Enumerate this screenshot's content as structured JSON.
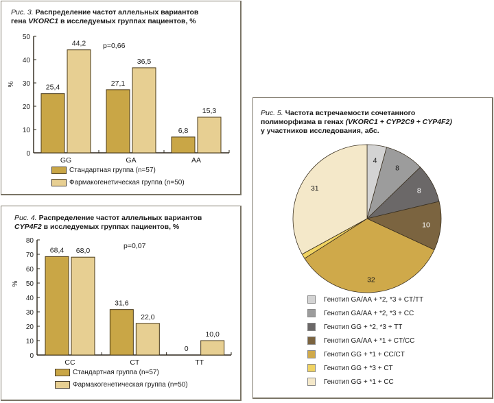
{
  "colors": {
    "standard": "#c9a646",
    "pharmaco": "#e7cf92",
    "border": "#7a7466",
    "pie": [
      "#d3d3d3",
      "#9c9c9c",
      "#6b6868",
      "#7b6440",
      "#cfa94a",
      "#f0d362",
      "#f4e8c9"
    ]
  },
  "legend_bar": {
    "standard": "Стандартная группа (n=57)",
    "pharmaco": "Фармакогенетическая группа (n=50)"
  },
  "chart_data": [
    {
      "type": "bar",
      "title_fig": "Рис. 3.",
      "title_line1": "Распределение частот аллельных вариантов",
      "title_line2_pre": "гена ",
      "title_line2_gene": "VKORC1",
      "title_line2_post": " в исследуемых группах пациентов, %",
      "ylabel": "%",
      "ylim": [
        0,
        50
      ],
      "yticks": [
        "0",
        "10",
        "20",
        "30",
        "40",
        "50"
      ],
      "ytick_values": [
        0,
        10,
        20,
        30,
        40,
        50
      ],
      "categories": [
        "GG",
        "GA",
        "AA"
      ],
      "annotation": "p=0,66",
      "series": [
        {
          "name": "Стандартная группа (n=57)",
          "values": [
            25.4,
            27.1,
            6.8
          ],
          "labels": [
            "25,4",
            "27,1",
            "6,8"
          ]
        },
        {
          "name": "Фармакогенетическая группа (n=50)",
          "values": [
            44.2,
            36.5,
            15.3
          ],
          "labels": [
            "44,2",
            "36,5",
            "15,3"
          ]
        }
      ]
    },
    {
      "type": "bar",
      "title_fig": "Рис. 4.",
      "title_line1": "Распределение частот аллельных вариантов",
      "title_line2_pre": "",
      "title_line2_gene": "CYP4F2",
      "title_line2_post": " в исследуемых группах пациентов, %",
      "ylabel": "%",
      "ylim": [
        0,
        80
      ],
      "yticks": [
        "0",
        "10",
        "20",
        "30",
        "40",
        "50",
        "60",
        "70",
        "80"
      ],
      "ytick_values": [
        0,
        10,
        20,
        30,
        40,
        50,
        60,
        70,
        80
      ],
      "categories": [
        "CC",
        "CT",
        "TT"
      ],
      "annotation": "p=0,07",
      "series": [
        {
          "name": "Стандартная группа (n=57)",
          "values": [
            68.4,
            31.6,
            0
          ],
          "labels": [
            "68,4",
            "31,6",
            "0"
          ]
        },
        {
          "name": "Фармакогенетическая группа (n=50)",
          "values": [
            68.0,
            22.0,
            10.0
          ],
          "labels": [
            "68,0",
            "22,0",
            "10,0"
          ]
        }
      ]
    },
    {
      "type": "pie",
      "title_fig": "Рис. 5.",
      "title_line1": "Частота встречаемости сочетанного",
      "title_line2_pre": "полиморфизма в генах ",
      "title_line2_gene": "(VKORC1 + CYP2C9 + CYP4F2)",
      "title_line3": "у участников исследования, абс.",
      "slices": [
        {
          "label": "Генотип GA/AA + *2, *3 + CT/TT",
          "value": 4,
          "text": "4"
        },
        {
          "label": "Генотип GA/AA + *2, *3 + CC",
          "value": 8,
          "text": "8"
        },
        {
          "label": "Генотип GG + *2, *3 + TT",
          "value": 8,
          "text": "8"
        },
        {
          "label": "Генотип GA/AA + *1 + CT/CC",
          "value": 10,
          "text": "10"
        },
        {
          "label": "Генотип GG + *1 + CC/CT",
          "value": 32,
          "text": "32"
        },
        {
          "label": "Генотип GG + *3 + CT",
          "value": 1,
          "text": ""
        },
        {
          "label": "Генотип GG + *1 + CC",
          "value": 31,
          "text": "31"
        }
      ]
    }
  ]
}
